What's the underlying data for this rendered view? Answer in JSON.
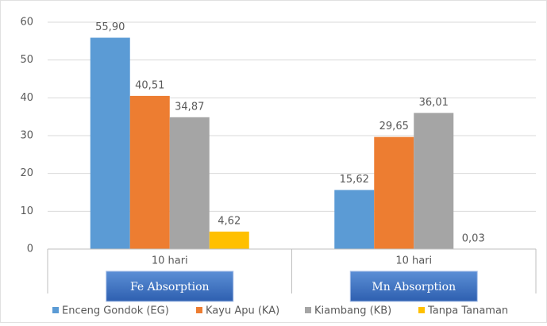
{
  "chart_data": {
    "type": "bar",
    "categories": [
      "10 hari",
      "10 hari"
    ],
    "group_labels": [
      "Fe Absorption",
      "Mn Absorption"
    ],
    "series": [
      {
        "name": "Enceng Gondok (EG)",
        "color": "#5b9bd5",
        "values": [
          55.9,
          15.62
        ],
        "value_labels": [
          "55,90",
          "15,62"
        ]
      },
      {
        "name": "Kayu Apu (KA)",
        "color": "#ed7d31",
        "values": [
          40.51,
          29.65
        ],
        "value_labels": [
          "40,51",
          "29,65"
        ]
      },
      {
        "name": "Kiambang (KB)",
        "color": "#a5a5a5",
        "values": [
          34.87,
          36.01
        ],
        "value_labels": [
          "34,87",
          "36,01"
        ]
      },
      {
        "name": "Tanpa Tanaman",
        "color": "#ffc000",
        "values": [
          4.62,
          0.03
        ],
        "value_labels": [
          "4,62",
          "0,03"
        ]
      }
    ],
    "ylim": [
      0,
      60
    ],
    "yticks": [
      0,
      10,
      20,
      30,
      40,
      50,
      60
    ],
    "grid": true
  }
}
